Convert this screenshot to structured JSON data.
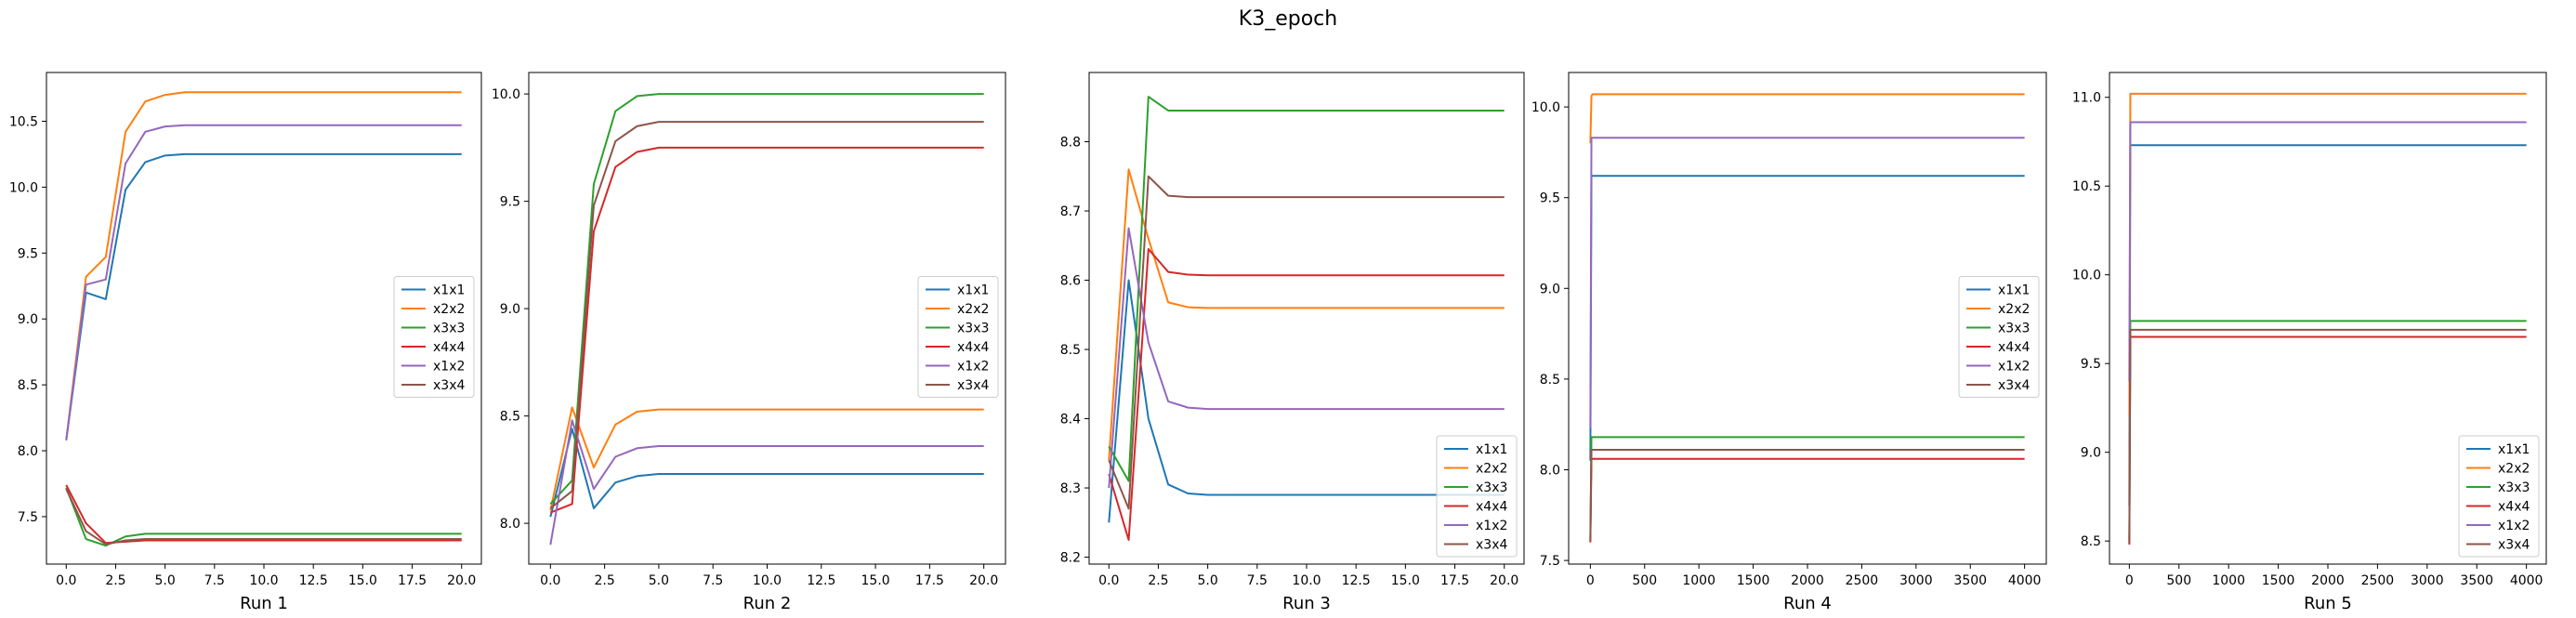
{
  "figure": {
    "title": "K3_epoch"
  },
  "colors": {
    "x1x1": "#1f77b4",
    "x2x2": "#ff7f0e",
    "x3x3": "#2ca02c",
    "x4x4": "#d62728",
    "x1x2": "#9467bd",
    "x3x4": "#8c564b"
  },
  "chart_data": [
    {
      "type": "line",
      "xlabel": "Run 1",
      "ylabel": "",
      "xlim": [
        -1,
        21
      ],
      "ylim": [
        7.14,
        10.87
      ],
      "xticks": [
        0,
        2.5,
        5,
        7.5,
        10,
        12.5,
        15,
        17.5,
        20
      ],
      "xtick_labels": [
        "0.0",
        "2.5",
        "5.0",
        "7.5",
        "10.0",
        "12.5",
        "15.0",
        "17.5",
        "20.0"
      ],
      "yticks": [
        7.5,
        8.0,
        8.5,
        9.0,
        9.5,
        10.0,
        10.5
      ],
      "ytick_labels": [
        "7.5",
        "8.0",
        "8.5",
        "9.0",
        "9.5",
        "10.0",
        "10.5"
      ],
      "legend": {
        "position": "center-right"
      },
      "x": [
        0,
        1,
        2,
        3,
        4,
        5,
        6,
        7,
        8,
        9,
        10,
        11,
        12,
        13,
        14,
        15,
        16,
        17,
        18,
        19,
        20
      ],
      "series": [
        {
          "name": "x1x1",
          "values": [
            8.08,
            9.2,
            9.15,
            9.98,
            10.19,
            10.24,
            10.25,
            10.25,
            10.25,
            10.25,
            10.25,
            10.25,
            10.25,
            10.25,
            10.25,
            10.25,
            10.25,
            10.25,
            10.25,
            10.25,
            10.25
          ]
        },
        {
          "name": "x2x2",
          "values": [
            8.08,
            9.32,
            9.47,
            10.42,
            10.65,
            10.7,
            10.72,
            10.72,
            10.72,
            10.72,
            10.72,
            10.72,
            10.72,
            10.72,
            10.72,
            10.72,
            10.72,
            10.72,
            10.72,
            10.72,
            10.72
          ]
        },
        {
          "name": "x3x3",
          "values": [
            7.72,
            7.33,
            7.28,
            7.35,
            7.37,
            7.37,
            7.37,
            7.37,
            7.37,
            7.37,
            7.37,
            7.37,
            7.37,
            7.37,
            7.37,
            7.37,
            7.37,
            7.37,
            7.37,
            7.37,
            7.37
          ]
        },
        {
          "name": "x4x4",
          "values": [
            7.74,
            7.45,
            7.3,
            7.31,
            7.32,
            7.32,
            7.32,
            7.32,
            7.32,
            7.32,
            7.32,
            7.32,
            7.32,
            7.32,
            7.32,
            7.32,
            7.32,
            7.32,
            7.32,
            7.32,
            7.32
          ]
        },
        {
          "name": "x1x2",
          "values": [
            8.08,
            9.26,
            9.3,
            10.18,
            10.42,
            10.46,
            10.47,
            10.47,
            10.47,
            10.47,
            10.47,
            10.47,
            10.47,
            10.47,
            10.47,
            10.47,
            10.47,
            10.47,
            10.47,
            10.47,
            10.47
          ]
        },
        {
          "name": "x3x4",
          "values": [
            7.71,
            7.39,
            7.29,
            7.32,
            7.33,
            7.33,
            7.33,
            7.33,
            7.33,
            7.33,
            7.33,
            7.33,
            7.33,
            7.33,
            7.33,
            7.33,
            7.33,
            7.33,
            7.33,
            7.33,
            7.33
          ]
        }
      ]
    },
    {
      "type": "line",
      "xlabel": "Run 2",
      "ylabel": "",
      "xlim": [
        -1,
        21
      ],
      "ylim": [
        7.81,
        10.1
      ],
      "xticks": [
        0,
        2.5,
        5,
        7.5,
        10,
        12.5,
        15,
        17.5,
        20
      ],
      "xtick_labels": [
        "0.0",
        "2.5",
        "5.0",
        "7.5",
        "10.0",
        "12.5",
        "15.0",
        "17.5",
        "20.0"
      ],
      "yticks": [
        8.0,
        8.5,
        9.0,
        9.5,
        10.0
      ],
      "ytick_labels": [
        "8.0",
        "8.5",
        "9.0",
        "9.5",
        "10.0"
      ],
      "legend": {
        "position": "center-right"
      },
      "x": [
        0,
        1,
        2,
        3,
        4,
        5,
        6,
        7,
        8,
        9,
        10,
        11,
        12,
        13,
        14,
        15,
        16,
        17,
        18,
        19,
        20
      ],
      "series": [
        {
          "name": "x1x1",
          "values": [
            8.03,
            8.44,
            8.07,
            8.19,
            8.22,
            8.23,
            8.23,
            8.23,
            8.23,
            8.23,
            8.23,
            8.23,
            8.23,
            8.23,
            8.23,
            8.23,
            8.23,
            8.23,
            8.23,
            8.23,
            8.23
          ]
        },
        {
          "name": "x2x2",
          "values": [
            8.06,
            8.54,
            8.26,
            8.46,
            8.52,
            8.53,
            8.53,
            8.53,
            8.53,
            8.53,
            8.53,
            8.53,
            8.53,
            8.53,
            8.53,
            8.53,
            8.53,
            8.53,
            8.53,
            8.53,
            8.53
          ]
        },
        {
          "name": "x3x3",
          "values": [
            8.09,
            8.2,
            9.58,
            9.92,
            9.99,
            10.0,
            10.0,
            10.0,
            10.0,
            10.0,
            10.0,
            10.0,
            10.0,
            10.0,
            10.0,
            10.0,
            10.0,
            10.0,
            10.0,
            10.0,
            10.0
          ]
        },
        {
          "name": "x4x4",
          "values": [
            8.05,
            8.09,
            9.36,
            9.66,
            9.73,
            9.75,
            9.75,
            9.75,
            9.75,
            9.75,
            9.75,
            9.75,
            9.75,
            9.75,
            9.75,
            9.75,
            9.75,
            9.75,
            9.75,
            9.75,
            9.75
          ]
        },
        {
          "name": "x1x2",
          "values": [
            7.9,
            8.48,
            8.16,
            8.31,
            8.35,
            8.36,
            8.36,
            8.36,
            8.36,
            8.36,
            8.36,
            8.36,
            8.36,
            8.36,
            8.36,
            8.36,
            8.36,
            8.36,
            8.36,
            8.36,
            8.36
          ]
        },
        {
          "name": "x3x4",
          "values": [
            8.07,
            8.15,
            9.48,
            9.78,
            9.85,
            9.87,
            9.87,
            9.87,
            9.87,
            9.87,
            9.87,
            9.87,
            9.87,
            9.87,
            9.87,
            9.87,
            9.87,
            9.87,
            9.87,
            9.87,
            9.87
          ]
        }
      ]
    },
    {
      "type": "line",
      "xlabel": "Run 3",
      "ylabel": "",
      "xlim": [
        -1,
        21
      ],
      "ylim": [
        8.19,
        8.9
      ],
      "xticks": [
        0,
        2.5,
        5,
        7.5,
        10,
        12.5,
        15,
        17.5,
        20
      ],
      "xtick_labels": [
        "0.0",
        "2.5",
        "5.0",
        "7.5",
        "10.0",
        "12.5",
        "15.0",
        "17.5",
        "20.0"
      ],
      "yticks": [
        8.2,
        8.3,
        8.4,
        8.5,
        8.6,
        8.7,
        8.8
      ],
      "ytick_labels": [
        "8.2",
        "8.3",
        "8.4",
        "8.5",
        "8.6",
        "8.7",
        "8.8"
      ],
      "legend": {
        "position": "lower-right"
      },
      "x": [
        0,
        1,
        2,
        3,
        4,
        5,
        6,
        7,
        8,
        9,
        10,
        11,
        12,
        13,
        14,
        15,
        16,
        17,
        18,
        19,
        20
      ],
      "series": [
        {
          "name": "x1x1",
          "values": [
            8.25,
            8.6,
            8.4,
            8.305,
            8.292,
            8.29,
            8.29,
            8.29,
            8.29,
            8.29,
            8.29,
            8.29,
            8.29,
            8.29,
            8.29,
            8.29,
            8.29,
            8.29,
            8.29,
            8.29,
            8.29
          ]
        },
        {
          "name": "x2x2",
          "values": [
            8.34,
            8.76,
            8.66,
            8.568,
            8.561,
            8.56,
            8.56,
            8.56,
            8.56,
            8.56,
            8.56,
            8.56,
            8.56,
            8.56,
            8.56,
            8.56,
            8.56,
            8.56,
            8.56,
            8.56,
            8.56
          ]
        },
        {
          "name": "x3x3",
          "values": [
            8.36,
            8.31,
            8.865,
            8.845,
            8.845,
            8.845,
            8.845,
            8.845,
            8.845,
            8.845,
            8.845,
            8.845,
            8.845,
            8.845,
            8.845,
            8.845,
            8.845,
            8.845,
            8.845,
            8.845,
            8.845
          ]
        },
        {
          "name": "x4x4",
          "values": [
            8.32,
            8.225,
            8.645,
            8.612,
            8.608,
            8.607,
            8.607,
            8.607,
            8.607,
            8.607,
            8.607,
            8.607,
            8.607,
            8.607,
            8.607,
            8.607,
            8.607,
            8.607,
            8.607,
            8.607,
            8.607
          ]
        },
        {
          "name": "x1x2",
          "values": [
            8.3,
            8.675,
            8.51,
            8.425,
            8.416,
            8.414,
            8.414,
            8.414,
            8.414,
            8.414,
            8.414,
            8.414,
            8.414,
            8.414,
            8.414,
            8.414,
            8.414,
            8.414,
            8.414,
            8.414,
            8.414
          ]
        },
        {
          "name": "x3x4",
          "values": [
            8.34,
            8.27,
            8.75,
            8.722,
            8.72,
            8.72,
            8.72,
            8.72,
            8.72,
            8.72,
            8.72,
            8.72,
            8.72,
            8.72,
            8.72,
            8.72,
            8.72,
            8.72,
            8.72,
            8.72,
            8.72
          ]
        }
      ]
    },
    {
      "type": "line",
      "xlabel": "Run 4",
      "ylabel": "",
      "xlim": [
        -200,
        4200
      ],
      "ylim": [
        7.48,
        10.19
      ],
      "xticks": [
        0,
        500,
        1000,
        1500,
        2000,
        2500,
        3000,
        3500,
        4000
      ],
      "xtick_labels": [
        "0",
        "500",
        "1000",
        "1500",
        "2000",
        "2500",
        "3000",
        "3500",
        "4000"
      ],
      "yticks": [
        7.5,
        8.0,
        8.5,
        9.0,
        9.5,
        10.0
      ],
      "ytick_labels": [
        "7.5",
        "8.0",
        "8.5",
        "9.0",
        "9.5",
        "10.0"
      ],
      "legend": {
        "position": "center-right"
      },
      "x": [
        0,
        10,
        20,
        4000
      ],
      "series": [
        {
          "name": "x1x1",
          "values": [
            8.05,
            9.62,
            9.62,
            9.62
          ]
        },
        {
          "name": "x2x2",
          "values": [
            9.8,
            10.06,
            10.07,
            10.07
          ]
        },
        {
          "name": "x3x3",
          "values": [
            7.62,
            8.18,
            8.18,
            8.18
          ]
        },
        {
          "name": "x4x4",
          "values": [
            7.6,
            8.06,
            8.06,
            8.06
          ]
        },
        {
          "name": "x1x2",
          "values": [
            8.23,
            9.83,
            9.83,
            9.83
          ]
        },
        {
          "name": "x3x4",
          "values": [
            7.61,
            8.11,
            8.11,
            8.11
          ]
        }
      ]
    },
    {
      "type": "line",
      "xlabel": "Run 5",
      "ylabel": "",
      "xlim": [
        -200,
        4200
      ],
      "ylim": [
        8.37,
        11.14
      ],
      "xticks": [
        0,
        500,
        1000,
        1500,
        2000,
        2500,
        3000,
        3500,
        4000
      ],
      "xtick_labels": [
        "0",
        "500",
        "1000",
        "1500",
        "2000",
        "2500",
        "3000",
        "3500",
        "4000"
      ],
      "yticks": [
        8.5,
        9.0,
        9.5,
        10.0,
        10.5,
        11.0
      ],
      "ytick_labels": [
        "8.5",
        "9.0",
        "9.5",
        "10.0",
        "10.5",
        "11.0"
      ],
      "legend": {
        "position": "lower-right"
      },
      "x": [
        0,
        10,
        20,
        4000
      ],
      "series": [
        {
          "name": "x1x1",
          "values": [
            8.7,
            10.73,
            10.73,
            10.73
          ]
        },
        {
          "name": "x2x2",
          "values": [
            9.2,
            11.02,
            11.02,
            11.02
          ]
        },
        {
          "name": "x3x3",
          "values": [
            8.5,
            9.74,
            9.74,
            9.74
          ]
        },
        {
          "name": "x4x4",
          "values": [
            8.48,
            9.65,
            9.65,
            9.65
          ]
        },
        {
          "name": "x1x2",
          "values": [
            9.4,
            10.86,
            10.86,
            10.86
          ]
        },
        {
          "name": "x3x4",
          "values": [
            8.49,
            9.69,
            9.69,
            9.69
          ]
        }
      ]
    }
  ]
}
